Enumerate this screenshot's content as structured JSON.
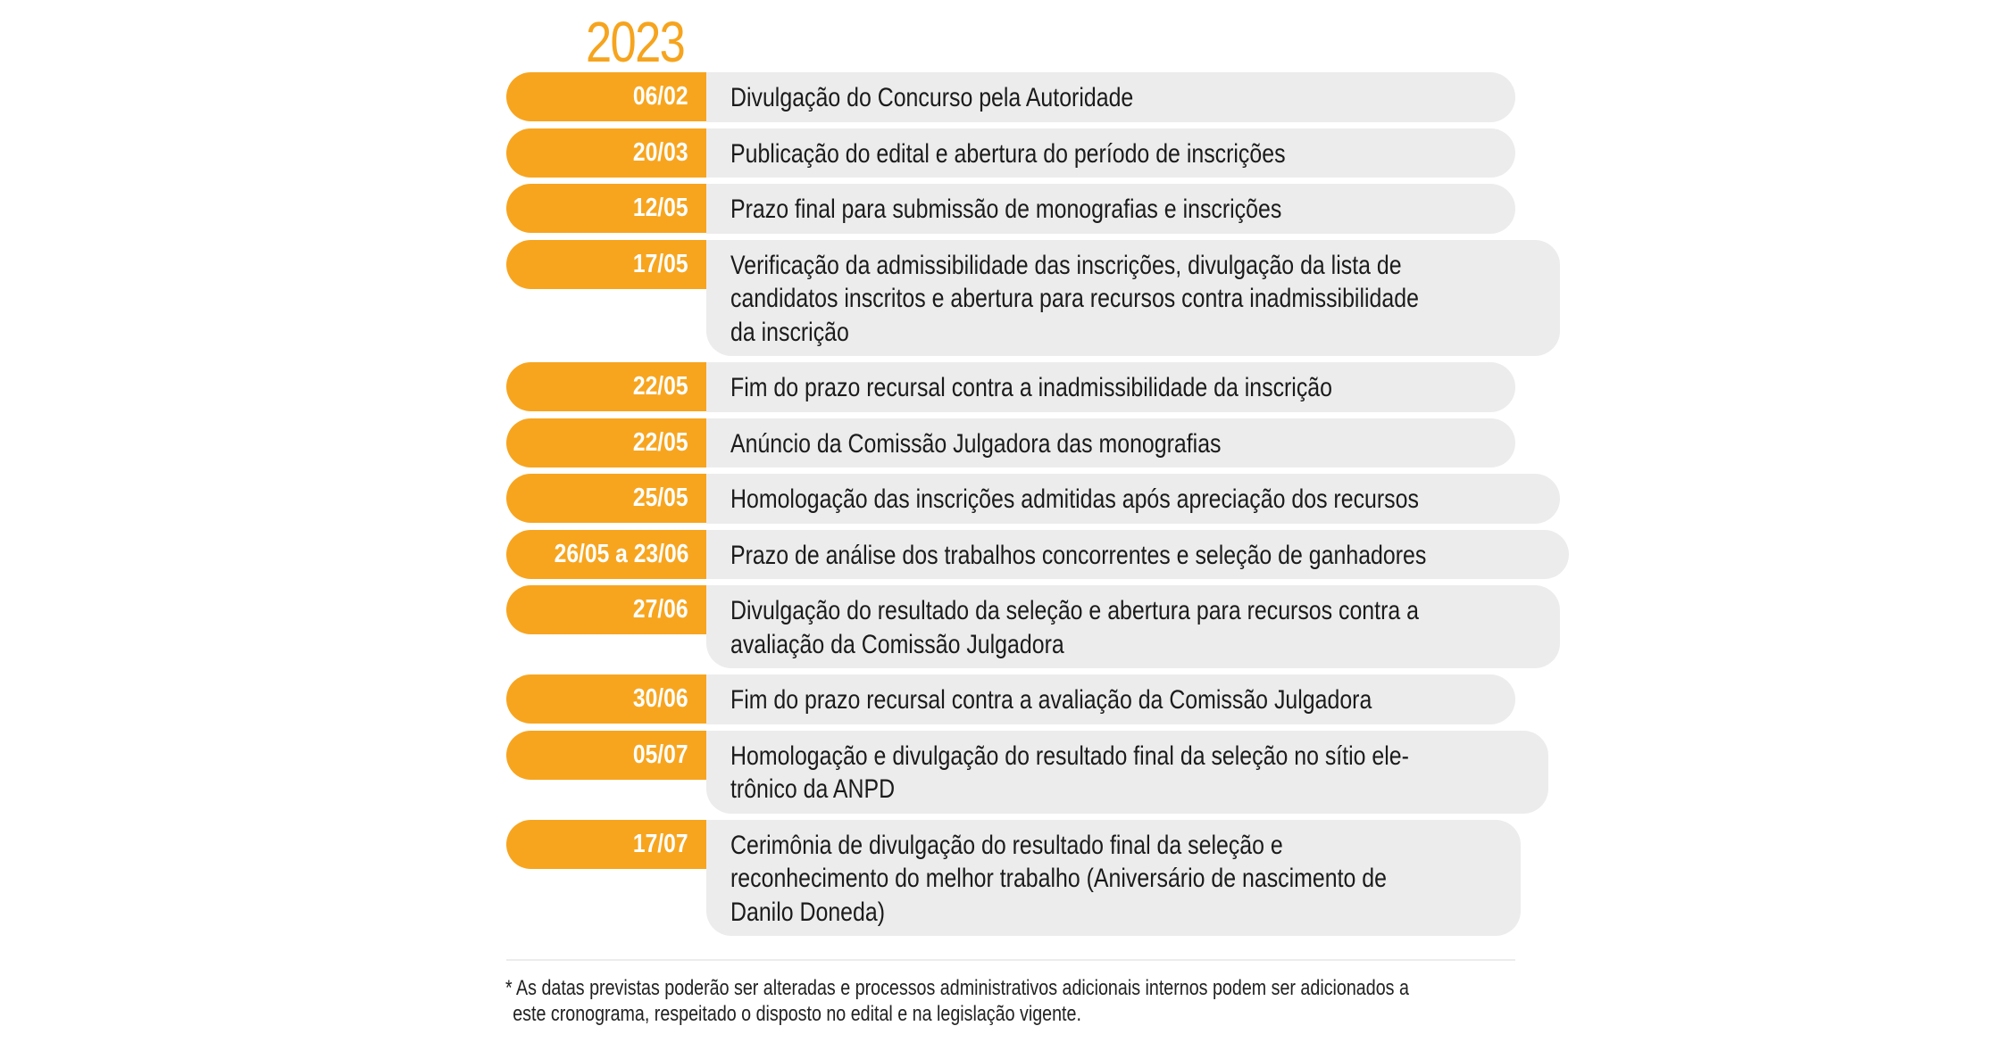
{
  "year": "2023",
  "colors": {
    "accent": "#f7a51f",
    "row_background": "#ececec",
    "date_text": "#ffffff"
  },
  "events": [
    {
      "date": "06/02",
      "lines": [
        "Divulgação do Concurso pela Autoridade"
      ]
    },
    {
      "date": "20/03",
      "lines": [
        "Publicação do edital e abertura do período de inscrições"
      ]
    },
    {
      "date": "12/05",
      "lines": [
        "Prazo final para submissão de monografias e inscrições"
      ]
    },
    {
      "date": "17/05",
      "lines": [
        "Verificação da admissibilidade das inscrições, divulgação da lista de",
        "candidatos inscritos e abertura para recursos contra inadmissibilidade",
        "da inscrição"
      ]
    },
    {
      "date": "22/05",
      "lines": [
        "Fim do prazo recursal contra a inadmissibilidade da inscrição"
      ]
    },
    {
      "date": "22/05",
      "lines": [
        "Anúncio da Comissão Julgadora das monografias"
      ]
    },
    {
      "date": "25/05",
      "lines": [
        "Homologação das inscrições admitidas após apreciação dos recursos"
      ]
    },
    {
      "date": "26/05 a 23/06",
      "lines": [
        "Prazo de análise dos trabalhos concorrentes e seleção de ganhadores"
      ]
    },
    {
      "date": "27/06",
      "lines": [
        "Divulgação do resultado da seleção e abertura para recursos contra a",
        "avaliação da Comissão Julgadora"
      ]
    },
    {
      "date": "30/06",
      "lines": [
        "Fim do prazo recursal contra a avaliação da Comissão Julgadora"
      ]
    },
    {
      "date": "05/07",
      "lines": [
        "Homologação e divulgação do resultado final da seleção no sítio ele-",
        "trônico da ANPD"
      ]
    },
    {
      "date": "17/07",
      "lines": [
        "Cerimônia de divulgação do resultado final da seleção e",
        "reconhecimento do melhor trabalho (Aniversário de nascimento de",
        "Danilo Doneda)"
      ]
    }
  ],
  "footnote": [
    "* As datas previstas poderão ser alteradas e processos administrativos adicionais internos podem ser adicionados a",
    "este cronograma, respeitado o disposto no edital e na legislação vigente."
  ]
}
